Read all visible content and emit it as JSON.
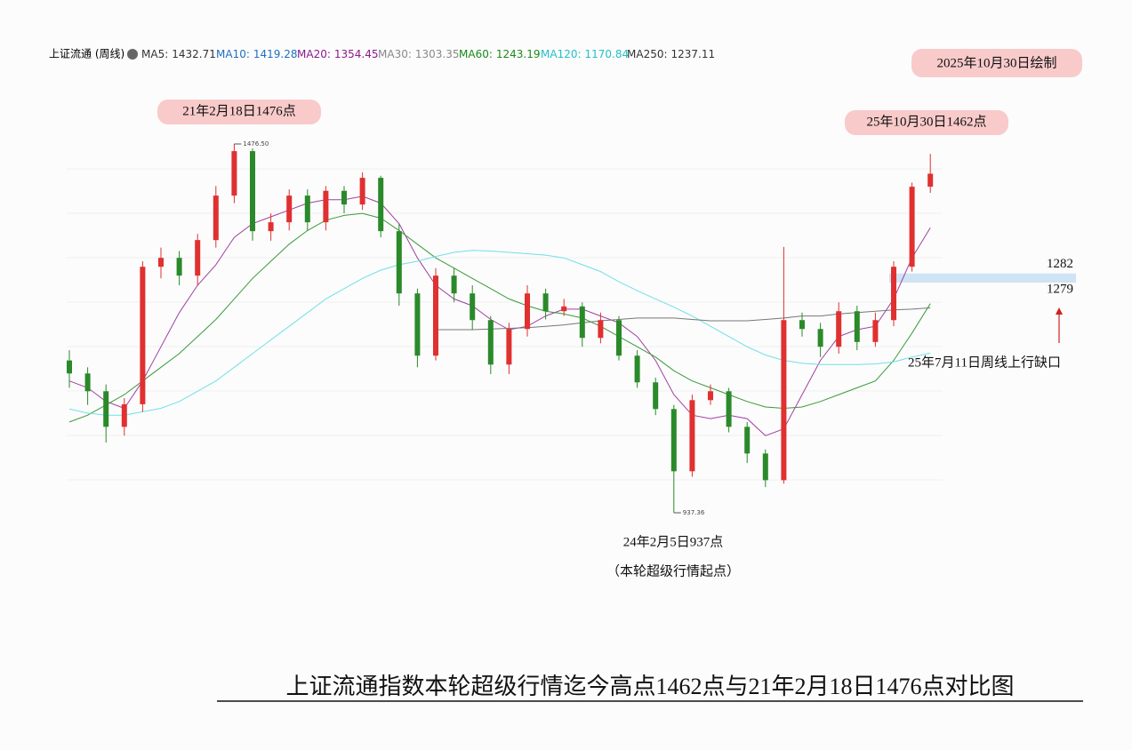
{
  "chart_data": {
    "type": "candlestick",
    "header": "上证流通 (周线)",
    "ma_legend": [
      {
        "name": "MA5:",
        "value": 1432.71,
        "color": "#333333"
      },
      {
        "name": "MA10:",
        "value": 1419.28,
        "color": "#1e6fc0"
      },
      {
        "name": "MA20:",
        "value": 1354.45,
        "color": "#8b1a8b"
      },
      {
        "name": "MA30:",
        "value": 1303.35,
        "color": "#888888"
      },
      {
        "name": "MA60:",
        "value": 1243.19,
        "color": "#1a8a1a"
      },
      {
        "name": "MA120:",
        "value": 1170.84,
        "color": "#22c0c8"
      },
      {
        "name": "MA250:",
        "value": 1237.11,
        "color": "#333333"
      }
    ],
    "drawn_date": "2025年10月30日绘制",
    "annotations": {
      "peak_2021": "21年2月18日1476点",
      "high_2025": "25年10月30日1462点",
      "gap_note": "25年7月11日周线上行缺口",
      "low_2024": "24年2月5日937点",
      "low_2024_note": "（本轮超级行情起点）"
    },
    "peak_label": {
      "value": 1476.5,
      "label": "1476.50"
    },
    "trough_label": 937.36,
    "gap": {
      "top": 1282,
      "bottom": 1279
    },
    "title": "上证流通指数本轮超级行情迄今高点1462点与21年2月18日1476点对比图",
    "ylim": [
      920,
      1490
    ],
    "up_color": "#e03030",
    "down_color": "#2a8a2a",
    "categories": [
      null,
      null,
      null,
      null,
      null,
      null,
      null,
      null,
      null,
      null,
      null,
      null,
      null,
      null,
      null,
      null,
      null,
      null,
      null,
      null,
      null,
      null,
      null,
      null,
      null,
      null,
      null,
      null,
      null,
      null,
      null,
      null,
      null,
      null,
      null,
      null,
      null,
      null,
      null,
      null,
      null,
      null,
      null,
      null,
      null,
      null,
      null,
      null
    ],
    "open": [
      1160,
      1141,
      1115,
      1063,
      1096,
      1297,
      1310,
      1284,
      1336,
      1401,
      1466,
      1349,
      1362,
      1401,
      1362,
      1408,
      1388,
      1427,
      1349,
      1258,
      1167,
      1284,
      1258,
      1219,
      1154,
      1206,
      1258,
      1232,
      1239,
      1193,
      1219,
      1167,
      1128,
      1089,
      998,
      1102,
      1115,
      1063,
      1024,
      985,
      1219,
      1206,
      1180,
      1232,
      1187,
      1219,
      1297,
      1414
    ],
    "high": [
      1175,
      1150,
      1125,
      1105,
      1305,
      1325,
      1320,
      1345,
      1415,
      1476.5,
      1470,
      1375,
      1410,
      1410,
      1415,
      1415,
      1435,
      1430,
      1360,
      1265,
      1295,
      1295,
      1270,
      1225,
      1215,
      1270,
      1265,
      1250,
      1245,
      1230,
      1225,
      1175,
      1135,
      1095,
      1110,
      1125,
      1120,
      1070,
      1030,
      1326,
      1230,
      1215,
      1245,
      1240,
      1230,
      1305,
      1420,
      1462
    ],
    "low": [
      1120,
      1095,
      1040,
      1050,
      1085,
      1280,
      1270,
      1270,
      1325,
      1390,
      1335,
      1335,
      1350,
      1350,
      1350,
      1375,
      1380,
      1340,
      1240,
      1150,
      1160,
      1245,
      1205,
      1140,
      1140,
      1195,
      1220,
      1225,
      1180,
      1185,
      1160,
      1120,
      1080,
      937.36,
      990,
      1095,
      1055,
      1010,
      975,
      980,
      1195,
      1165,
      1170,
      1175,
      1180,
      1210,
      1290,
      1405
    ],
    "close": [
      1141,
      1115,
      1063,
      1096,
      1297,
      1310,
      1284,
      1336,
      1401,
      1466,
      1349,
      1362,
      1401,
      1362,
      1408,
      1388,
      1427,
      1349,
      1258,
      1167,
      1284,
      1258,
      1219,
      1154,
      1206,
      1258,
      1232,
      1239,
      1193,
      1219,
      1167,
      1128,
      1089,
      998,
      1102,
      1115,
      1063,
      1024,
      985,
      1219,
      1206,
      1180,
      1232,
      1187,
      1219,
      1297,
      1414,
      1433
    ],
    "series": [
      {
        "name": "MA20",
        "color": "#a040a0",
        "values": [
          1130,
          1120,
          1100,
          1090,
          1130,
          1180,
          1230,
          1270,
          1300,
          1340,
          1360,
          1370,
          1380,
          1390,
          1395,
          1395,
          1400,
          1390,
          1360,
          1310,
          1270,
          1250,
          1240,
          1220,
          1205,
          1210,
          1225,
          1235,
          1235,
          1225,
          1215,
          1195,
          1160,
          1110,
          1080,
          1075,
          1080,
          1075,
          1050,
          1060,
          1110,
          1160,
          1195,
          1205,
          1210,
          1250,
          1310,
          1354
        ]
      },
      {
        "name": "MA60",
        "color": "#3a9a3a",
        "values": [
          1070,
          1080,
          1095,
          1110,
          1130,
          1150,
          1170,
          1195,
          1220,
          1250,
          1280,
          1305,
          1330,
          1350,
          1365,
          1372,
          1375,
          1368,
          1350,
          1330,
          1310,
          1295,
          1280,
          1265,
          1250,
          1240,
          1232,
          1228,
          1222,
          1210,
          1195,
          1180,
          1165,
          1145,
          1130,
          1120,
          1110,
          1100,
          1092,
          1090,
          1092,
          1100,
          1110,
          1120,
          1130,
          1160,
          1200,
          1243
        ]
      },
      {
        "name": "MA120",
        "color": "#6fe0e6",
        "values": [
          1089,
          1083,
          1080,
          1080,
          1085,
          1090,
          1100,
          1115,
          1130,
          1150,
          1170,
          1190,
          1210,
          1230,
          1250,
          1265,
          1280,
          1292,
          1300,
          1305,
          1312,
          1318,
          1321,
          1320,
          1318,
          1316,
          1314,
          1310,
          1300,
          1290,
          1275,
          1262,
          1250,
          1238,
          1225,
          1210,
          1195,
          1180,
          1168,
          1160,
          1156,
          1154,
          1154,
          1154,
          1155,
          1158,
          1165,
          1171
        ]
      },
      {
        "name": "MA250",
        "color": "#777777",
        "values": [
          null,
          null,
          null,
          null,
          null,
          null,
          null,
          null,
          null,
          null,
          null,
          null,
          null,
          null,
          null,
          null,
          null,
          null,
          null,
          null,
          1205,
          1205,
          1205,
          1206,
          1207,
          1208,
          1210,
          1212,
          1215,
          1218,
          1220,
          1222,
          1222,
          1222,
          1220,
          1218,
          1218,
          1218,
          1220,
          1222,
          1225,
          1225,
          1228,
          1230,
          1232,
          1234,
          1235,
          1237
        ]
      }
    ]
  }
}
